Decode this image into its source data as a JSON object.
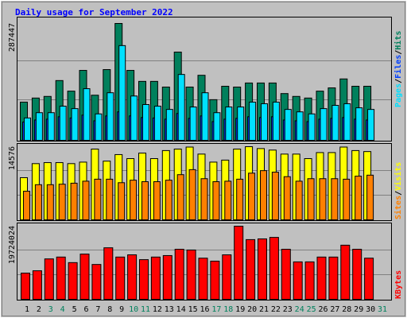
{
  "chart_data": {
    "type": "bar",
    "title": "Daily usage for September 2022",
    "categories": [
      "1",
      "2",
      "3",
      "4",
      "5",
      "6",
      "7",
      "8",
      "9",
      "10",
      "11",
      "12",
      "13",
      "14",
      "15",
      "16",
      "17",
      "18",
      "19",
      "20",
      "21",
      "22",
      "23",
      "24",
      "25",
      "26",
      "27",
      "28",
      "29",
      "30",
      "31"
    ],
    "category_colors": [
      "#000000",
      "#000000",
      "#00805c",
      "#00805c",
      "#000000",
      "#000000",
      "#000000",
      "#000000",
      "#000000",
      "#00805c",
      "#00805c",
      "#000000",
      "#000000",
      "#000000",
      "#000000",
      "#000000",
      "#00805c",
      "#00805c",
      "#000000",
      "#000000",
      "#000000",
      "#000000",
      "#000000",
      "#00805c",
      "#00805c",
      "#000000",
      "#000000",
      "#000000",
      "#000000",
      "#000000",
      "#00805c"
    ],
    "separator": "/",
    "panels": [
      {
        "ylim": [
          0,
          287447
        ],
        "yticks": [
          287447
        ],
        "series": [
          {
            "name": "Hits",
            "color": "#00805c",
            "values": [
              94000,
              104000,
              108000,
              147000,
              121000,
              172000,
              111000,
              174000,
              287447,
              172000,
              145000,
              145000,
              131000,
              217000,
              131000,
              160000,
              100000,
              133000,
              131000,
              141000,
              141000,
              141000,
              115000,
              108000,
              104000,
              121000,
              129000,
              151000,
              133000,
              133000,
              null
            ]
          },
          {
            "name": "Files",
            "color": "#0040ff",
            "values": [
              45000,
              50000,
              52000,
              58000,
              55000,
              62000,
              48000,
              60000,
              70000,
              60000,
              56000,
              55000,
              52000,
              66000,
              54000,
              60000,
              46000,
              52000,
              54000,
              58000,
              56000,
              58000,
              50000,
              48000,
              46000,
              52000,
              54000,
              56000,
              52000,
              50000,
              null
            ]
          },
          {
            "name": "Pages",
            "color": "#00e0ff",
            "values": [
              55000,
              68000,
              68000,
              84000,
              78000,
              127000,
              65000,
              117000,
              233000,
              109000,
              88000,
              84000,
              76000,
              162000,
              82000,
              117000,
              68000,
              82000,
              82000,
              94000,
              90000,
              94000,
              76000,
              70000,
              65000,
              78000,
              86000,
              90000,
              80000,
              76000,
              null
            ]
          }
        ]
      },
      {
        "ylim": [
          0,
          14576
        ],
        "yticks": [
          14576
        ],
        "series": [
          {
            "name": "Visits",
            "color": "#ffff00",
            "values": [
              8400,
              11200,
              11400,
              11400,
              11200,
              11500,
              14100,
              11700,
              13000,
              12200,
              13300,
              12200,
              13800,
              14100,
              14500,
              13100,
              11500,
              11900,
              14100,
              14576,
              14200,
              13900,
              13100,
              13100,
              12200,
              13400,
              13400,
              14500,
              13800,
              13600,
              null
            ]
          },
          {
            "name": "Sites",
            "color": "#ff8000",
            "values": [
              5700,
              7000,
              7000,
              7100,
              7300,
              7700,
              8100,
              8100,
              7400,
              7900,
              7600,
              7600,
              7900,
              9000,
              10000,
              8200,
              7600,
              7700,
              8100,
              9300,
              9800,
              9500,
              8600,
              7700,
              8200,
              8200,
              8200,
              8100,
              8700,
              8900,
              null
            ]
          }
        ]
      },
      {
        "ylim": [
          0,
          19724024
        ],
        "yticks": [
          19724024
        ],
        "series": [
          {
            "name": "KBytes",
            "color": "#ff0000",
            "values": [
              7070000,
              7700000,
              10900000,
              11400000,
              9900000,
              12200000,
              9400000,
              13900000,
              11400000,
              12000000,
              10700000,
              11400000,
              11800000,
              13500000,
              13300000,
              11100000,
              10300000,
              12000000,
              19724024,
              16100000,
              16300000,
              16700000,
              13500000,
              10100000,
              10100000,
              11400000,
              11400000,
              14600000,
              13500000,
              11100000,
              null
            ]
          }
        ]
      }
    ]
  }
}
